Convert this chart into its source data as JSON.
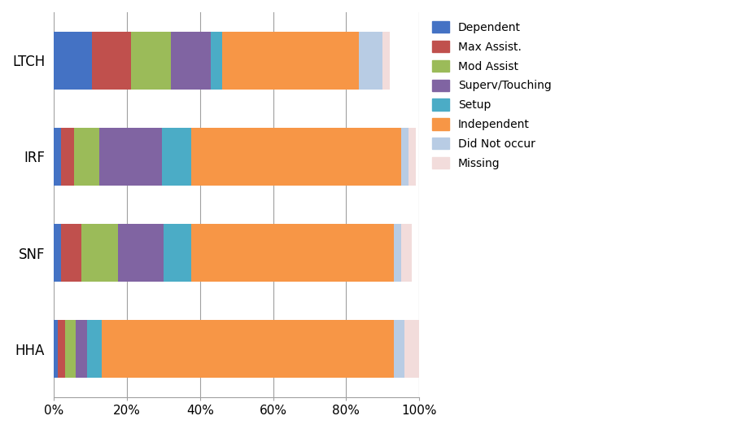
{
  "providers": [
    "LTCH",
    "IRF",
    "SNF",
    "HHA"
  ],
  "categories": [
    "Dependent",
    "Max Assist.",
    "Mod Assist",
    "Superv/Touching",
    "Setup",
    "Independent",
    "Did Not occur",
    "Missing"
  ],
  "colors": [
    "#4472C4",
    "#C0504D",
    "#9BBB59",
    "#8064A2",
    "#4BACC6",
    "#F79646",
    "#B8CCE4",
    "#F2DCDB"
  ],
  "data": {
    "LTCH": [
      10.5,
      10.5,
      11.0,
      11.0,
      3.0,
      37.5,
      6.5,
      2.0
    ],
    "IRF": [
      2.0,
      3.5,
      7.0,
      17.0,
      8.0,
      57.5,
      2.0,
      2.0
    ],
    "SNF": [
      2.0,
      5.5,
      10.0,
      12.5,
      7.5,
      55.5,
      2.0,
      3.0
    ],
    "HHA": [
      1.0,
      2.0,
      3.0,
      3.0,
      4.0,
      80.0,
      3.0,
      4.0
    ]
  },
  "xlim": [
    0,
    100
  ],
  "xtick_labels": [
    "0%",
    "20%",
    "40%",
    "60%",
    "80%",
    "100%"
  ],
  "xtick_values": [
    0,
    20,
    40,
    60,
    80,
    100
  ],
  "background_color": "#FFFFFF",
  "grid_color": "#A0A0A0",
  "bar_height": 0.6,
  "figsize": [
    9.02,
    5.27
  ],
  "dpi": 100
}
